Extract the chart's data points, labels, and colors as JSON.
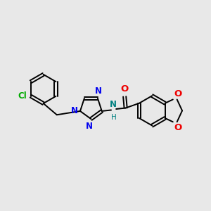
{
  "background_color": "#e8e8e8",
  "bond_color": "#000000",
  "cl_color": "#00aa00",
  "n_color": "#0000ee",
  "o_color": "#ee0000",
  "nh_color": "#008080",
  "figsize": [
    3.0,
    3.0
  ],
  "dpi": 100,
  "xlim": [
    0,
    10
  ],
  "ylim": [
    2,
    8
  ]
}
